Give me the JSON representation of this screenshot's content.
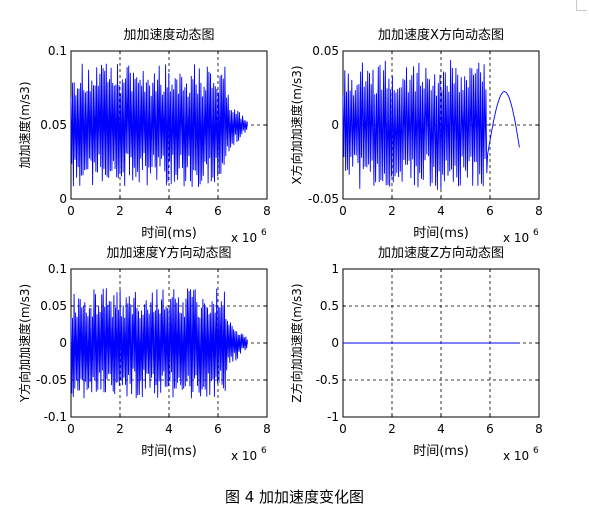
{
  "figure": {
    "caption": "图 4  加加速度变化图"
  },
  "chart_data": [
    {
      "type": "line",
      "title": "加加速度动态图",
      "xlabel": "时间(ms)",
      "ylabel": "加加速度(m/s3)",
      "xlim": [
        0,
        8
      ],
      "ylim": [
        0,
        0.1
      ],
      "x_exponent_label": "x 10",
      "x_exponent_power": "6",
      "xticks": [
        "0",
        "2",
        "4",
        "6",
        "8"
      ],
      "yticks": [
        "0",
        "0.05",
        "0.1"
      ],
      "grid": true,
      "line_color": "#0000ff",
      "signal": {
        "kind": "oscillation",
        "x_start": 0,
        "x_end": 7.2,
        "center": 0.05,
        "amplitude": 0.042,
        "cycles": 110,
        "tail_from": 6.3
      }
    },
    {
      "type": "line",
      "title": "加加速度X方向动态图",
      "xlabel": "时间(ms)",
      "ylabel": "X方向加加速度(m/s3)",
      "xlim": [
        0,
        8
      ],
      "ylim": [
        -0.05,
        0.05
      ],
      "x_exponent_label": "x 10",
      "x_exponent_power": "6",
      "xticks": [
        "0",
        "2",
        "4",
        "6",
        "8"
      ],
      "yticks": [
        "-0.05",
        "0",
        "0.05"
      ],
      "grid": true,
      "line_color": "#0000ff",
      "signal": {
        "kind": "oscillation",
        "x_start": 0,
        "x_end": 7.2,
        "center": 0.0,
        "amplitude": 0.044,
        "cycles": 100,
        "tail_from": 5.9
      }
    },
    {
      "type": "line",
      "title": "加加速度Y方向动态图",
      "xlabel": "时间(ms)",
      "ylabel": "Y方向加加速度(m/s3)",
      "xlim": [
        0,
        8
      ],
      "ylim": [
        -0.1,
        0.1
      ],
      "x_exponent_label": "x 10",
      "x_exponent_power": "6",
      "xticks": [
        "0",
        "2",
        "4",
        "6",
        "8"
      ],
      "yticks": [
        "-0.1",
        "-0.05",
        "0",
        "0.05",
        "0.1"
      ],
      "grid": true,
      "line_color": "#0000ff",
      "signal": {
        "kind": "oscillation",
        "x_start": 0,
        "x_end": 7.2,
        "center": 0.0,
        "amplitude": 0.075,
        "cycles": 115,
        "tail_from": 6.3
      }
    },
    {
      "type": "line",
      "title": "加加速度Z方向动态图",
      "xlabel": "时间(ms)",
      "ylabel": "Z方向加加速度(m/s3)",
      "xlim": [
        0,
        8
      ],
      "ylim": [
        -1,
        1
      ],
      "x_exponent_label": "x 10",
      "x_exponent_power": "6",
      "xticks": [
        "0",
        "2",
        "4",
        "6",
        "8"
      ],
      "yticks": [
        "-1",
        "-0.5",
        "0",
        "0.5",
        "1"
      ],
      "grid": true,
      "line_color": "#0000ff",
      "signal": {
        "kind": "constant",
        "x_start": 0,
        "x_end": 7.2,
        "value": 0
      }
    }
  ]
}
